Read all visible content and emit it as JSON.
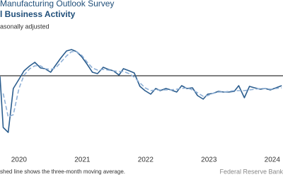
{
  "chart_data": {
    "type": "line",
    "title": "Manufacturing Outlook Survey",
    "subtitle": "l Business Activity",
    "note": "asonally adjusted",
    "footnote": "shed line shows the three-month moving average.",
    "source": "Federal Reserve Bank",
    "x": [
      2019.7,
      2019.75,
      2019.83,
      2019.91,
      2020.0,
      2020.08,
      2020.17,
      2020.25,
      2020.34,
      2020.41,
      2020.5,
      2020.58,
      2020.66,
      2020.75,
      2020.83,
      2020.91,
      2020.99,
      2021.07,
      2021.16,
      2021.24,
      2021.33,
      2021.41,
      2021.49,
      2021.58,
      2021.65,
      2021.74,
      2021.82,
      2021.91,
      2021.99,
      2022.08,
      2022.16,
      2022.23,
      2022.32,
      2022.4,
      2022.49,
      2022.57,
      2022.65,
      2022.74,
      2022.82,
      2022.91,
      2022.98,
      2023.06,
      2023.15,
      2023.23,
      2023.32,
      2023.4,
      2023.47,
      2023.56,
      2023.64,
      2023.72,
      2023.81,
      2023.89,
      2023.97,
      2024.06,
      2024.15
    ],
    "series": [
      {
        "color": "#2b5d8e",
        "dashed": false,
        "values": [
          -1,
          -73,
          -80,
          -18,
          -5,
          7,
          14,
          19,
          11,
          10,
          5,
          15,
          25,
          35,
          37,
          34,
          27,
          17,
          5,
          3,
          12,
          9,
          7,
          1,
          10,
          7,
          4,
          -15,
          -21,
          -26,
          -18,
          -21,
          -18,
          -20,
          -23,
          -14,
          -18,
          -17,
          -28,
          -33,
          -26,
          -25,
          -22,
          -23,
          -23,
          -22,
          -14,
          -31,
          -15,
          -17,
          -19,
          -18,
          -20,
          -17,
          -14
        ]
      },
      {
        "color": "#8fb0d6",
        "dashed": true,
        "values": [
          null,
          -25,
          -58,
          -55,
          -18,
          1,
          10,
          14,
          14,
          10,
          9,
          11,
          19,
          28,
          34,
          34,
          29,
          20,
          11,
          8,
          9,
          8,
          7,
          6,
          6,
          3,
          -2,
          -10,
          -17,
          -21,
          -20,
          -20,
          -20,
          -20,
          -19,
          -18,
          -17,
          -20,
          -24,
          -29,
          -28,
          -25,
          -23,
          -23,
          -22,
          -21,
          -21,
          -21,
          -20,
          -19,
          -18,
          -18,
          -19,
          -18,
          -17
        ]
      }
    ],
    "xlim": [
      2019.7,
      2024.17
    ],
    "xticks": [
      2020,
      2021,
      2022,
      2023,
      2024
    ],
    "ylim": [
      -93,
      67
    ]
  }
}
